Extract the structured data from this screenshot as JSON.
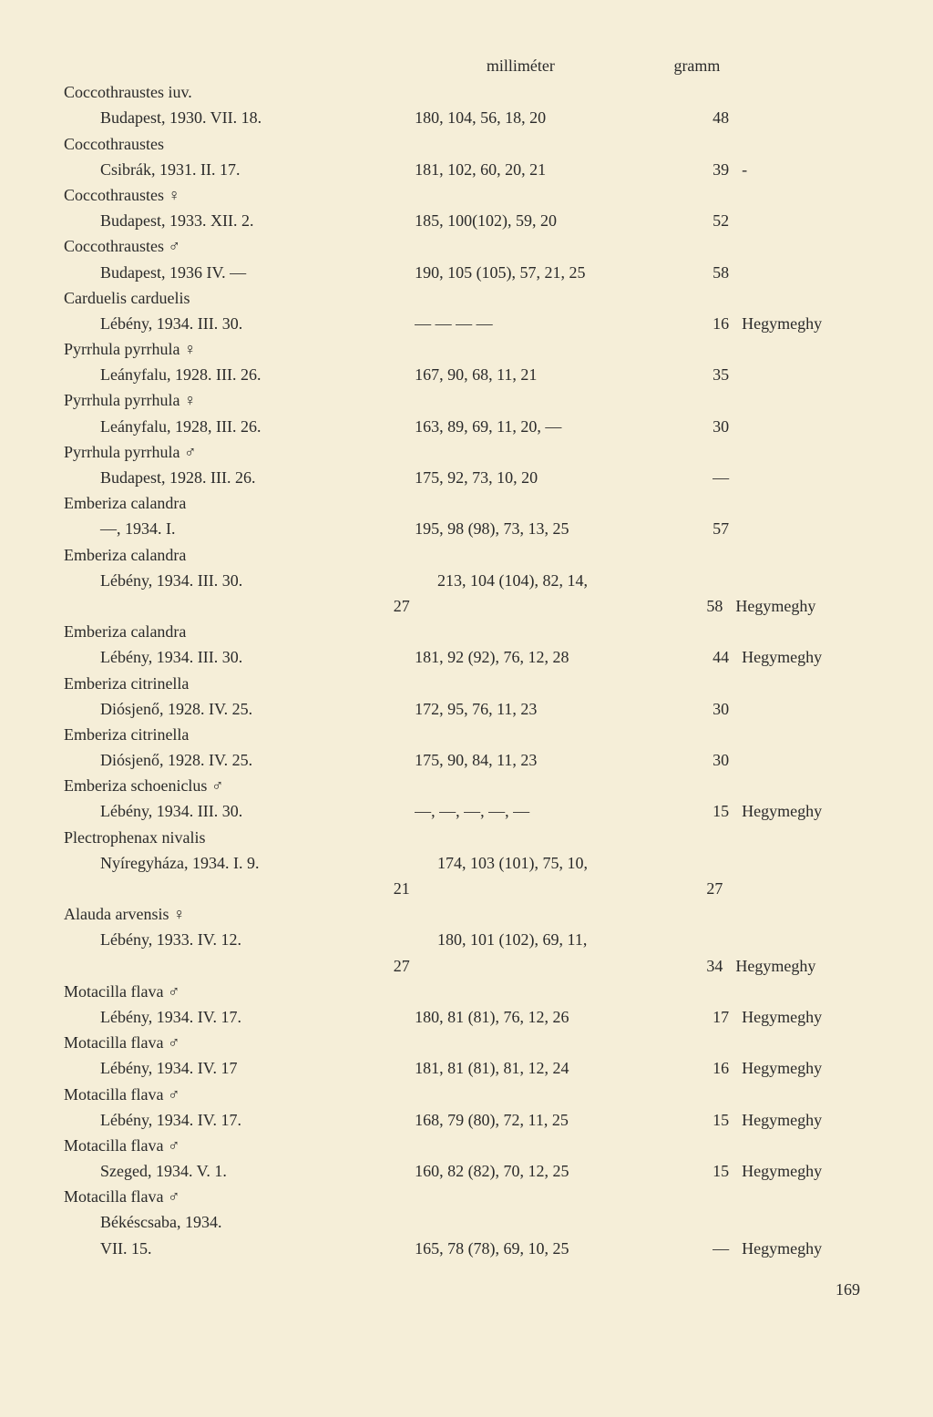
{
  "headers": {
    "col2": "milliméter",
    "col3": "gramm"
  },
  "entries": [
    {
      "species": "Coccothraustes iuv.",
      "location": "Budapest, 1930. VII. 18.",
      "measurements": "180, 104, 56, 18, 20",
      "weight": "48",
      "note": ""
    },
    {
      "species": "Coccothraustes",
      "location": "Csibrák, 1931. II. 17.",
      "measurements": "181, 102, 60, 20, 21",
      "weight": "39",
      "note": "-"
    },
    {
      "species": "Coccothraustes ♀",
      "location": "Budapest, 1933. XII. 2.",
      "measurements": "185, 100(102), 59, 20",
      "weight": "52",
      "note": ""
    },
    {
      "species": "Coccothraustes ♂",
      "location": "Budapest, 1936 IV. —",
      "measurements": "190, 105 (105), 57, 21, 25",
      "weight": "58",
      "note": ""
    },
    {
      "species": "Carduelis carduelis",
      "location": "Lébény, 1934. III. 30.",
      "measurements": "—    —    —    —",
      "weight": "16",
      "note": "Hegymeghy"
    },
    {
      "species": "Pyrrhula pyrrhula ♀",
      "location": "Leányfalu, 1928. III. 26.",
      "measurements": "167, 90, 68, 11, 21",
      "weight": "35",
      "note": ""
    },
    {
      "species": "Pyrrhula pyrrhula ♀",
      "location": "Leányfalu, 1928, III. 26.",
      "measurements": "163, 89, 69, 11, 20, —",
      "weight": "30",
      "note": ""
    },
    {
      "species": "Pyrrhula pyrrhula ♂",
      "location": "Budapest, 1928. III. 26.",
      "measurements": "175, 92, 73, 10, 20",
      "weight": "—",
      "note": ""
    },
    {
      "species": "Emberiza calandra",
      "location": "—, 1934. I.",
      "measurements": "195, 98 (98), 73, 13, 25",
      "weight": "57",
      "note": ""
    },
    {
      "species": "Emberiza calandra",
      "location": "Lébény, 1934. III. 30.",
      "measurements": "213, 104 (104), 82, 14,",
      "cont_measurements": "27",
      "weight": "58",
      "note": "Hegymeghy"
    },
    {
      "species": "Emberiza calandra",
      "location": "Lébény, 1934. III. 30.",
      "measurements": "181, 92 (92), 76, 12, 28",
      "weight": "44",
      "note": "Hegymeghy"
    },
    {
      "species": "Emberiza citrinella",
      "location": "Diósjenő, 1928. IV. 25.",
      "measurements": "172, 95, 76, 11, 23",
      "weight": "30",
      "note": ""
    },
    {
      "species": "Emberiza citrinella",
      "location": "Diósjenő, 1928. IV. 25.",
      "measurements": "175, 90, 84, 11, 23",
      "weight": "30",
      "note": ""
    },
    {
      "species": "Emberiza schoeniclus ♂",
      "location": "Lébény, 1934. III. 30.",
      "measurements": "—, —, —, —, —",
      "weight": "15",
      "note": "Hegymeghy"
    },
    {
      "species": "Plectrophenax nivalis",
      "location": "Nyíregyháza, 1934. I. 9.",
      "measurements": "174, 103 (101), 75, 10,",
      "cont_measurements": "21",
      "weight": "27",
      "note": ""
    },
    {
      "species": "Alauda arvensis ♀",
      "location": "Lébény, 1933. IV. 12.",
      "measurements": "180, 101 (102), 69, 11,",
      "cont_measurements": "27",
      "weight": "34",
      "note": "Hegymeghy"
    },
    {
      "species": "Motacilla flava ♂",
      "location": "Lébény, 1934. IV. 17.",
      "measurements": "180, 81 (81), 76, 12, 26",
      "weight": "17",
      "note": "Hegymeghy"
    },
    {
      "species": "Motacilla flava ♂",
      "location": "Lébény, 1934. IV. 17",
      "measurements": "181, 81 (81), 81, 12, 24",
      "weight": "16",
      "note": "Hegymeghy"
    },
    {
      "species": "Motacilla flava ♂",
      "location": "Lébény, 1934. IV. 17.",
      "measurements": "168, 79 (80), 72, 11, 25",
      "weight": "15",
      "note": "Hegymeghy"
    },
    {
      "species": "Motacilla flava ♂",
      "location": "Szeged, 1934. V. 1.",
      "measurements": "160, 82 (82), 70, 12, 25",
      "weight": "15",
      "note": "Hegymeghy"
    },
    {
      "species": "Motacilla flava ♂",
      "location": "Békéscsaba, 1934.",
      "extra_line": "VII. 15.",
      "measurements": "165, 78 (78), 69, 10, 25",
      "weight": "—",
      "note": "Hegymeghy"
    }
  ],
  "page_number": "169"
}
